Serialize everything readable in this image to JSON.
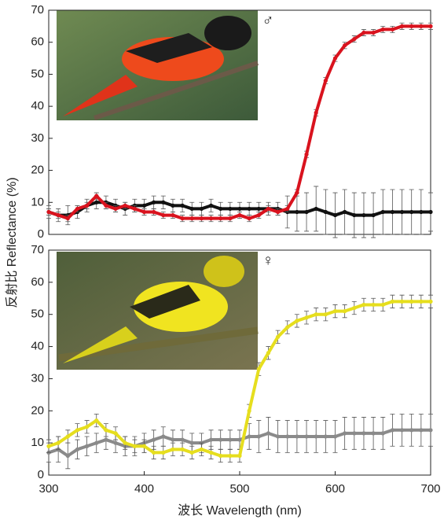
{
  "chart_data": [
    {
      "type": "line",
      "annotation": "♂",
      "ylabel": "反射比 Reflectance (%)",
      "x": [
        300,
        310,
        320,
        330,
        340,
        350,
        360,
        370,
        380,
        390,
        400,
        410,
        420,
        430,
        440,
        450,
        460,
        470,
        480,
        490,
        500,
        510,
        520,
        530,
        540,
        550,
        560,
        570,
        580,
        590,
        600,
        610,
        620,
        630,
        640,
        650,
        660,
        670,
        680,
        690,
        700
      ],
      "xlim": [
        300,
        700
      ],
      "ylim": [
        0,
        70
      ],
      "yticks": [
        0,
        10,
        20,
        30,
        40,
        50,
        60,
        70
      ],
      "series": [
        {
          "color": "#111111",
          "values": [
            7,
            6,
            6,
            7,
            9,
            10,
            10,
            9,
            8,
            9,
            9,
            10,
            10,
            9,
            9,
            8,
            8,
            9,
            8,
            8,
            8,
            8,
            8,
            8,
            8,
            7,
            7,
            7,
            8,
            7,
            6,
            7,
            6,
            6,
            6,
            7,
            7,
            7,
            7,
            7,
            7
          ],
          "errors": [
            2,
            2,
            3,
            2,
            2,
            2,
            2,
            2,
            2,
            2,
            2,
            2,
            2,
            2,
            2,
            2,
            2,
            2,
            2,
            2,
            2,
            2,
            2,
            2,
            2,
            5,
            6,
            6,
            7,
            7,
            7,
            7,
            7,
            7,
            7,
            7,
            7,
            7,
            7,
            7,
            6
          ]
        },
        {
          "color": "#d9131e",
          "values": [
            7,
            6,
            5,
            8,
            9,
            12,
            9,
            8,
            9,
            8,
            7,
            7,
            6,
            6,
            5,
            5,
            5,
            5,
            5,
            5,
            6,
            5,
            6,
            8,
            7,
            8,
            13,
            25,
            38,
            48,
            55,
            59,
            61,
            63,
            63,
            64,
            64,
            65,
            65,
            65,
            65
          ],
          "errors": [
            1,
            1,
            1,
            1,
            1,
            1,
            1,
            1,
            1,
            1,
            1,
            1,
            1,
            1,
            1,
            1,
            1,
            1,
            1,
            1,
            1,
            1,
            1,
            1,
            1,
            1,
            1,
            1,
            1,
            1,
            1,
            1,
            1,
            1,
            1,
            1,
            1,
            1,
            1,
            1,
            1
          ]
        }
      ]
    },
    {
      "type": "line",
      "annotation": "♀",
      "xlabel": "波长 Wavelength (nm)",
      "x": [
        300,
        310,
        320,
        330,
        340,
        350,
        360,
        370,
        380,
        390,
        400,
        410,
        420,
        430,
        440,
        450,
        460,
        470,
        480,
        490,
        500,
        510,
        520,
        530,
        540,
        550,
        560,
        570,
        580,
        590,
        600,
        610,
        620,
        630,
        640,
        650,
        660,
        670,
        680,
        690,
        700
      ],
      "xlim": [
        300,
        700
      ],
      "xticks": [
        300,
        400,
        500,
        600,
        700
      ],
      "ylim": [
        0,
        70
      ],
      "yticks": [
        0,
        10,
        20,
        30,
        40,
        50,
        60,
        70
      ],
      "series": [
        {
          "color": "#8a8a8a",
          "values": [
            7,
            8,
            6,
            8,
            9,
            10,
            11,
            10,
            9,
            9,
            10,
            11,
            12,
            11,
            11,
            10,
            10,
            11,
            11,
            11,
            11,
            12,
            12,
            13,
            12,
            12,
            12,
            12,
            12,
            12,
            12,
            13,
            13,
            13,
            13,
            13,
            14,
            14,
            14,
            14,
            14
          ],
          "errors": [
            3,
            4,
            4,
            3,
            3,
            3,
            3,
            3,
            3,
            3,
            3,
            3,
            3,
            3,
            3,
            3,
            3,
            3,
            3,
            3,
            3,
            4,
            5,
            5,
            5,
            5,
            5,
            5,
            5,
            5,
            5,
            5,
            5,
            5,
            5,
            5,
            5,
            5,
            5,
            5,
            5
          ]
        },
        {
          "color": "#e6de1e",
          "values": [
            9,
            10,
            12,
            14,
            15,
            17,
            14,
            13,
            10,
            9,
            9,
            7,
            7,
            8,
            8,
            7,
            8,
            7,
            6,
            6,
            6,
            20,
            33,
            38,
            43,
            46,
            48,
            49,
            50,
            50,
            51,
            51,
            52,
            53,
            53,
            53,
            54,
            54,
            54,
            54,
            54
          ],
          "errors": [
            2,
            2,
            2,
            2,
            2,
            2,
            2,
            2,
            2,
            2,
            2,
            2,
            2,
            2,
            2,
            2,
            2,
            2,
            2,
            2,
            2,
            2,
            2,
            2,
            2,
            2,
            2,
            2,
            2,
            2,
            2,
            2,
            2,
            2,
            2,
            2,
            2,
            2,
            2,
            2,
            2
          ]
        }
      ]
    }
  ]
}
